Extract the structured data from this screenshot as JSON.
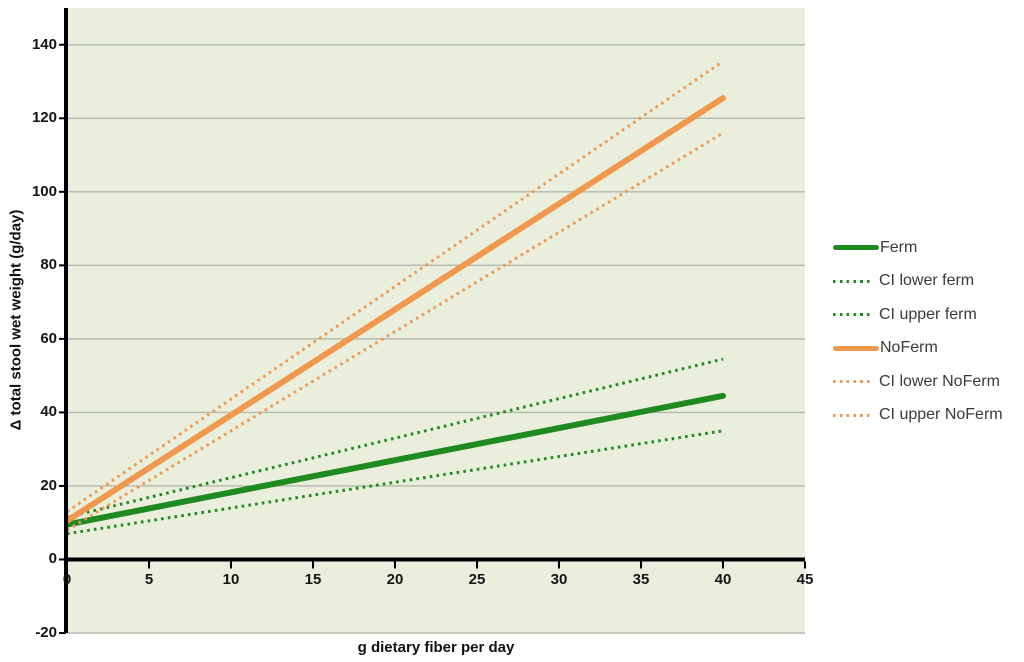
{
  "chart_data": {
    "type": "line",
    "title": "",
    "xlabel": "g dietary fiber per day",
    "ylabel": "Δ total stool wet weight (g/day)",
    "xlim": [
      0,
      45
    ],
    "ylim": [
      -20,
      150
    ],
    "x_ticks": [
      0,
      5,
      10,
      15,
      20,
      25,
      30,
      35,
      40,
      45
    ],
    "y_ticks": [
      140,
      120,
      100,
      80,
      60,
      40,
      20,
      0,
      -20
    ],
    "grid": "horizontal-gridlines-only",
    "legend_position": "right-center",
    "x": [
      0,
      40
    ],
    "series": [
      {
        "name": "Ferm",
        "style": "solid",
        "color": "#1f8a1f",
        "values": [
          9.5,
          44.5
        ]
      },
      {
        "name": "CI lower ferm",
        "style": "dotted",
        "color": "#1f8a1f",
        "values": [
          7,
          35
        ]
      },
      {
        "name": "CI upper ferm",
        "style": "dotted",
        "color": "#1f8a1f",
        "values": [
          11.5,
          54.5
        ]
      },
      {
        "name": "NoFerm",
        "style": "solid",
        "color": "#f0994e",
        "values": [
          10.5,
          125.5
        ]
      },
      {
        "name": "CI lower NoFerm",
        "style": "dotted",
        "color": "#f0994e",
        "values": [
          8,
          116
        ]
      },
      {
        "name": "CI upper NoFerm",
        "style": "dotted",
        "color": "#f0994e",
        "values": [
          13,
          135.5
        ]
      }
    ],
    "colors": {
      "plot_background": "#eaefdd",
      "gridline": "#b3b9ab",
      "axis": "#000000",
      "ferm_green": "#1f8a1f",
      "noferm_orange": "#f0994e"
    }
  }
}
